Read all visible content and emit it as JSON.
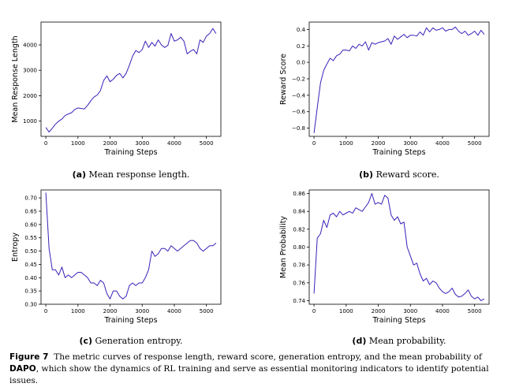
{
  "line_color": "#3b1fb8",
  "chart_data": [
    {
      "type": "line",
      "xlabel": "Training Steps",
      "ylabel": "Mean Response Length",
      "subcaption_tag": "(a)",
      "subcaption_text": "Mean response length.",
      "xlim": [
        -150,
        5450
      ],
      "ylim": [
        400,
        4900
      ],
      "xticks": [
        0,
        1000,
        2000,
        3000,
        4000,
        5000
      ],
      "yticks": [
        1000,
        2000,
        3000,
        4000
      ],
      "x": [
        0,
        100,
        200,
        300,
        400,
        500,
        600,
        700,
        800,
        900,
        1000,
        1100,
        1200,
        1300,
        1400,
        1500,
        1600,
        1700,
        1800,
        1900,
        2000,
        2100,
        2200,
        2300,
        2400,
        2500,
        2600,
        2700,
        2800,
        2900,
        3000,
        3100,
        3200,
        3300,
        3400,
        3500,
        3600,
        3700,
        3800,
        3900,
        4000,
        4100,
        4200,
        4300,
        4400,
        4500,
        4600,
        4700,
        4800,
        4900,
        5000,
        5100,
        5200,
        5300
      ],
      "y": [
        750,
        570,
        720,
        880,
        1000,
        1080,
        1220,
        1280,
        1330,
        1460,
        1520,
        1500,
        1480,
        1620,
        1800,
        1950,
        2030,
        2200,
        2600,
        2780,
        2550,
        2650,
        2800,
        2880,
        2700,
        2880,
        3200,
        3550,
        3780,
        3700,
        3820,
        4150,
        3900,
        4100,
        3950,
        4200,
        4000,
        3900,
        3980,
        4450,
        4150,
        4200,
        4300,
        4150,
        3650,
        3750,
        3820,
        3650,
        4200,
        4100,
        4350,
        4450,
        4650,
        4450
      ]
    },
    {
      "type": "line",
      "xlabel": "Training Steps",
      "ylabel": "Reward Score",
      "subcaption_tag": "(b)",
      "subcaption_text": "Reward score.",
      "xlim": [
        -150,
        5450
      ],
      "ylim": [
        -0.9,
        0.49
      ],
      "xticks": [
        0,
        1000,
        2000,
        3000,
        4000,
        5000
      ],
      "yticks": [
        -0.8,
        -0.6,
        -0.4,
        -0.2,
        0.0,
        0.2,
        0.4
      ],
      "ytick_labels": [
        "−0.8",
        "−0.6",
        "−0.4",
        "−0.2",
        "0.0",
        "0.2",
        "0.4"
      ],
      "x": [
        0,
        100,
        200,
        300,
        400,
        500,
        600,
        700,
        800,
        900,
        1000,
        1100,
        1200,
        1300,
        1400,
        1500,
        1600,
        1700,
        1800,
        1900,
        2000,
        2100,
        2200,
        2300,
        2400,
        2500,
        2600,
        2700,
        2800,
        2900,
        3000,
        3100,
        3200,
        3300,
        3400,
        3500,
        3600,
        3700,
        3800,
        3900,
        4000,
        4100,
        4200,
        4300,
        4400,
        4500,
        4600,
        4700,
        4800,
        4900,
        5000,
        5100,
        5200,
        5300
      ],
      "y": [
        -0.86,
        -0.55,
        -0.25,
        -0.1,
        -0.02,
        0.05,
        0.02,
        0.08,
        0.1,
        0.15,
        0.15,
        0.14,
        0.2,
        0.17,
        0.22,
        0.2,
        0.25,
        0.15,
        0.24,
        0.22,
        0.24,
        0.25,
        0.26,
        0.29,
        0.22,
        0.32,
        0.28,
        0.31,
        0.34,
        0.3,
        0.33,
        0.33,
        0.32,
        0.37,
        0.33,
        0.42,
        0.37,
        0.42,
        0.39,
        0.4,
        0.42,
        0.38,
        0.4,
        0.4,
        0.43,
        0.38,
        0.35,
        0.38,
        0.33,
        0.35,
        0.38,
        0.33,
        0.39,
        0.34
      ]
    },
    {
      "type": "line",
      "xlabel": "Training Steps",
      "ylabel": "Entropy",
      "subcaption_tag": "(c)",
      "subcaption_text": "Generation entropy.",
      "xlim": [
        -150,
        5450
      ],
      "ylim": [
        0.3,
        0.73
      ],
      "xticks": [
        0,
        1000,
        2000,
        3000,
        4000,
        5000
      ],
      "yticks": [
        0.3,
        0.35,
        0.4,
        0.45,
        0.5,
        0.55,
        0.6,
        0.65,
        0.7
      ],
      "ytick_labels": [
        "0.30",
        "0.35",
        "0.40",
        "0.45",
        "0.50",
        "0.55",
        "0.60",
        "0.65",
        "0.70"
      ],
      "x": [
        0,
        100,
        200,
        300,
        400,
        500,
        600,
        700,
        800,
        900,
        1000,
        1100,
        1200,
        1300,
        1400,
        1500,
        1600,
        1700,
        1800,
        1900,
        2000,
        2100,
        2200,
        2300,
        2400,
        2500,
        2600,
        2700,
        2800,
        2900,
        3000,
        3100,
        3200,
        3300,
        3400,
        3500,
        3600,
        3700,
        3800,
        3900,
        4000,
        4100,
        4200,
        4300,
        4400,
        4500,
        4600,
        4700,
        4800,
        4900,
        5000,
        5100,
        5200,
        5300
      ],
      "y": [
        0.72,
        0.51,
        0.43,
        0.43,
        0.41,
        0.44,
        0.4,
        0.41,
        0.4,
        0.41,
        0.42,
        0.42,
        0.41,
        0.4,
        0.38,
        0.38,
        0.37,
        0.39,
        0.38,
        0.34,
        0.32,
        0.35,
        0.35,
        0.33,
        0.32,
        0.33,
        0.37,
        0.38,
        0.37,
        0.38,
        0.38,
        0.4,
        0.43,
        0.5,
        0.48,
        0.49,
        0.51,
        0.51,
        0.5,
        0.52,
        0.51,
        0.5,
        0.51,
        0.52,
        0.53,
        0.54,
        0.54,
        0.53,
        0.51,
        0.5,
        0.51,
        0.52,
        0.52,
        0.53
      ]
    },
    {
      "type": "line",
      "xlabel": "Training Steps",
      "ylabel": "Mean Probability",
      "subcaption_tag": "(d)",
      "subcaption_text": "Mean probability.",
      "xlim": [
        -150,
        5450
      ],
      "ylim": [
        0.736,
        0.864
      ],
      "xticks": [
        0,
        1000,
        2000,
        3000,
        4000,
        5000
      ],
      "yticks": [
        0.74,
        0.76,
        0.78,
        0.8,
        0.82,
        0.84,
        0.86
      ],
      "ytick_labels": [
        "0.74",
        "0.76",
        "0.78",
        "0.80",
        "0.82",
        "0.84",
        "0.86"
      ],
      "x": [
        0,
        100,
        200,
        300,
        400,
        500,
        600,
        700,
        800,
        900,
        1000,
        1100,
        1200,
        1300,
        1400,
        1500,
        1600,
        1700,
        1800,
        1900,
        2000,
        2100,
        2200,
        2300,
        2400,
        2500,
        2600,
        2700,
        2800,
        2900,
        3000,
        3100,
        3200,
        3300,
        3400,
        3500,
        3600,
        3700,
        3800,
        3900,
        4000,
        4100,
        4200,
        4300,
        4400,
        4500,
        4600,
        4700,
        4800,
        4900,
        5000,
        5100,
        5200,
        5300
      ],
      "y": [
        0.748,
        0.81,
        0.815,
        0.83,
        0.822,
        0.836,
        0.838,
        0.834,
        0.84,
        0.836,
        0.838,
        0.84,
        0.838,
        0.844,
        0.842,
        0.84,
        0.845,
        0.85,
        0.86,
        0.848,
        0.85,
        0.848,
        0.858,
        0.855,
        0.836,
        0.83,
        0.834,
        0.826,
        0.828,
        0.8,
        0.79,
        0.78,
        0.782,
        0.77,
        0.762,
        0.765,
        0.758,
        0.762,
        0.76,
        0.754,
        0.75,
        0.748,
        0.75,
        0.754,
        0.747,
        0.744,
        0.745,
        0.748,
        0.752,
        0.745,
        0.742,
        0.744,
        0.74,
        0.742
      ]
    }
  ],
  "caption": {
    "figure_label": "Figure 7",
    "text_before": "The metric curves of response length, reward score, generation entropy, and the mean probability of",
    "highlight": "DAPO",
    "text_after": ", which show the dynamics of RL training and serve as essential monitoring indicators to identify potential issues."
  }
}
